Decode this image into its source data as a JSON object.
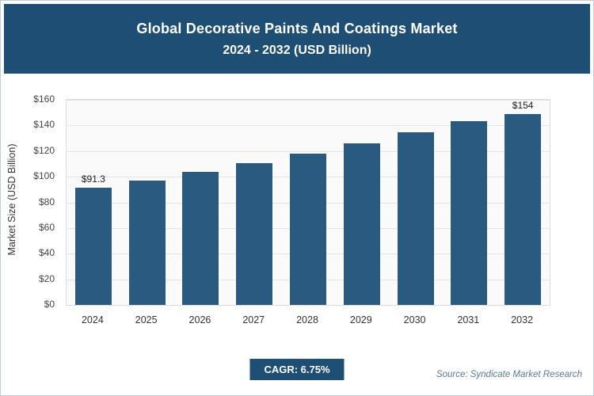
{
  "colors": {
    "primary": "#1f4e74",
    "bar": "#2a5a80"
  },
  "header": {
    "title_line1": "Global Decorative Paints And Coatings Market",
    "title_line2": "2024 - 2032 (USD Billion)",
    "bg_color": "#1f4e74",
    "text_color": "#ffffff"
  },
  "chart_data": {
    "type": "bar",
    "title": "Global Decorative Paints And Coatings Market",
    "subtitle": "2024 - 2032 (USD Billion)",
    "categories": [
      "2024",
      "2025",
      "2026",
      "2027",
      "2028",
      "2029",
      "2030",
      "2031",
      "2032"
    ],
    "values": [
      91.3,
      97,
      103.5,
      110.5,
      118,
      126,
      134.5,
      143.5,
      154
    ],
    "ylabel": "Market Size (USD Billion)",
    "xlabel": "",
    "ylim": [
      0,
      160
    ],
    "ytick_step": 20,
    "ytick_labels": [
      "$0",
      "$20",
      "$40",
      "$60",
      "$80",
      "$100",
      "$120",
      "$140",
      "$160"
    ],
    "bar_color": "#2a5a80",
    "grid": true,
    "legend": "none",
    "annotations": [
      {
        "index": 0,
        "text": "$91.3"
      },
      {
        "index": 8,
        "text": "$154"
      }
    ]
  },
  "footer": {
    "cagr_label": "CAGR: 6.75%",
    "source": "Source: Syndicate Market Research"
  }
}
